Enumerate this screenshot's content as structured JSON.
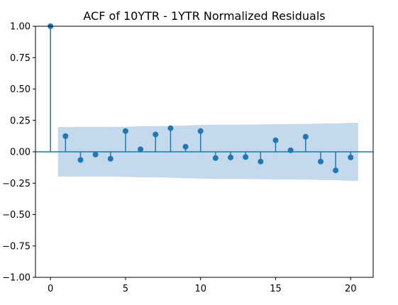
{
  "chart_data": {
    "type": "stem",
    "title": "ACF of 10YTR - 1YTR Normalized Residuals",
    "xlabel": "",
    "ylabel": "",
    "xlim": [
      -1,
      21.5
    ],
    "ylim": [
      -1.0,
      1.0
    ],
    "x_ticks": [
      0,
      5,
      10,
      15,
      20
    ],
    "y_ticks": [
      -1.0,
      -0.75,
      -0.5,
      -0.25,
      0.0,
      0.25,
      0.5,
      0.75,
      1.0
    ],
    "x_tick_labels": [
      "0",
      "5",
      "10",
      "15",
      "20"
    ],
    "y_tick_labels": [
      "−1.00",
      "−0.75",
      "−0.50",
      "−0.25",
      "0.00",
      "0.25",
      "0.50",
      "0.75",
      "1.00"
    ],
    "grid": false,
    "lags": [
      0,
      1,
      2,
      3,
      4,
      5,
      6,
      7,
      8,
      9,
      10,
      11,
      12,
      13,
      14,
      15,
      16,
      17,
      18,
      19,
      20
    ],
    "values": [
      1.0,
      0.125,
      -0.065,
      -0.022,
      -0.055,
      0.165,
      0.02,
      0.138,
      0.188,
      0.04,
      0.165,
      -0.05,
      -0.045,
      -0.042,
      -0.078,
      0.092,
      0.012,
      0.12,
      -0.078,
      -0.148,
      -0.045
    ],
    "confidence_band": {
      "x": [
        0.5,
        1,
        2,
        3,
        4,
        5,
        6,
        7,
        8,
        9,
        10,
        11,
        12,
        13,
        14,
        15,
        16,
        17,
        18,
        19,
        20,
        20.5
      ],
      "upper": [
        0.197,
        0.197,
        0.198,
        0.198,
        0.198,
        0.199,
        0.204,
        0.204,
        0.206,
        0.21,
        0.214,
        0.216,
        0.216,
        0.217,
        0.218,
        0.22,
        0.221,
        0.222,
        0.225,
        0.226,
        0.231,
        0.231
      ],
      "lower": [
        -0.197,
        -0.197,
        -0.198,
        -0.198,
        -0.198,
        -0.199,
        -0.204,
        -0.204,
        -0.206,
        -0.21,
        -0.214,
        -0.216,
        -0.216,
        -0.217,
        -0.218,
        -0.22,
        -0.221,
        -0.222,
        -0.225,
        -0.226,
        -0.231,
        -0.231
      ]
    },
    "colors": {
      "stem": "#1f77b4",
      "band": "#c5d9ec",
      "axis": "#000000"
    }
  }
}
